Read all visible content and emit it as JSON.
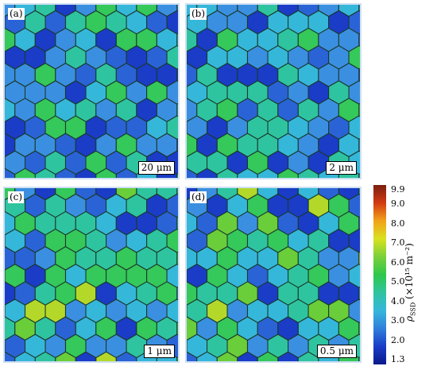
{
  "panels": [
    {
      "label": "(a)",
      "scale": "20 μm"
    },
    {
      "label": "(b)",
      "scale": "2 μm"
    },
    {
      "label": "(c)",
      "scale": "1 μm"
    },
    {
      "label": "(d)",
      "scale": "0.5 μm"
    }
  ],
  "colorbar": {
    "title_symbol": "ρ",
    "title_sub": "SSD",
    "title_unit": "(×10¹⁵ m⁻²)",
    "ticks": [
      "9.9",
      "9.0",
      "8.0",
      "7.0",
      "6.0",
      "5.0",
      "4.0",
      "3.0",
      "2.0",
      "1.3"
    ],
    "colors": [
      "#7a1f10",
      "#d23a12",
      "#f2a21a",
      "#d9e21e",
      "#7ad03a",
      "#2ec84a",
      "#2fc4a0",
      "#35b7da",
      "#2f7fdc",
      "#1a3cc7",
      "#0a1a8a"
    ]
  }
}
